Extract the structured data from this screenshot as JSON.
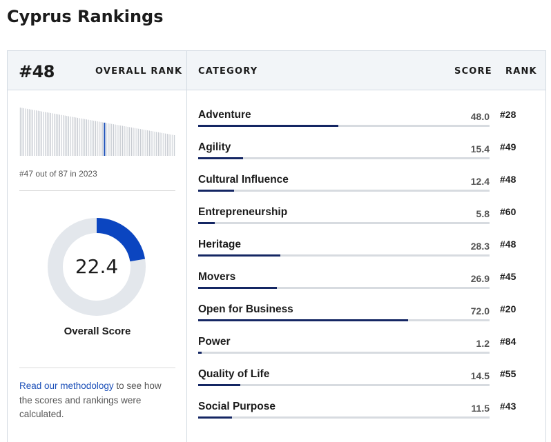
{
  "page": {
    "title": "Cyprus Rankings"
  },
  "overall": {
    "rank": "#48",
    "rank_label": "OVERALL RANK",
    "history_text": "#47 out of 87 in 2023",
    "score": "22.4",
    "score_fraction": 0.224,
    "score_label": "Overall Score",
    "sparkline": {
      "count": 87,
      "highlight_index": 47
    }
  },
  "table_header": {
    "category": "CATEGORY",
    "score": "SCORE",
    "rank": "RANK"
  },
  "methodology": {
    "link_text": "Read our methodology",
    "rest_text": " to see how the scores and rankings were calculated."
  },
  "colors": {
    "accent": "#0b45c0",
    "bar_fill": "#142663",
    "track": "#d7dbe0",
    "donut_track": "#e3e7ec",
    "highlight_line": "#1b4fb8"
  },
  "categories": [
    {
      "name": "Adventure",
      "score": "48.0",
      "rank": "#28",
      "value": 48.0
    },
    {
      "name": "Agility",
      "score": "15.4",
      "rank": "#49",
      "value": 15.4
    },
    {
      "name": "Cultural Influence",
      "score": "12.4",
      "rank": "#48",
      "value": 12.4
    },
    {
      "name": "Entrepreneurship",
      "score": "5.8",
      "rank": "#60",
      "value": 5.8
    },
    {
      "name": "Heritage",
      "score": "28.3",
      "rank": "#48",
      "value": 28.3
    },
    {
      "name": "Movers",
      "score": "26.9",
      "rank": "#45",
      "value": 26.9
    },
    {
      "name": "Open for Business",
      "score": "72.0",
      "rank": "#20",
      "value": 72.0
    },
    {
      "name": "Power",
      "score": "1.2",
      "rank": "#84",
      "value": 1.2
    },
    {
      "name": "Quality of Life",
      "score": "14.5",
      "rank": "#55",
      "value": 14.5
    },
    {
      "name": "Social Purpose",
      "score": "11.5",
      "rank": "#43",
      "value": 11.5
    }
  ]
}
